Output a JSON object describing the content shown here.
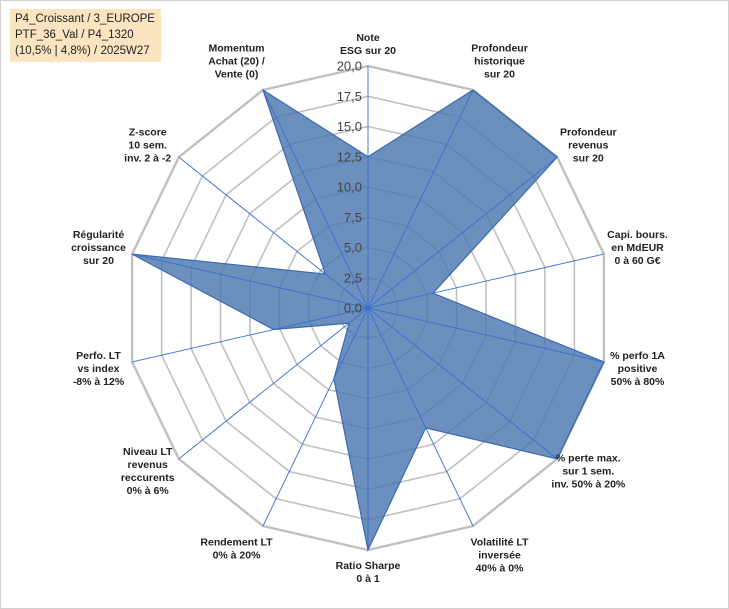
{
  "info_box": {
    "line1": "P4_Croissant / 3_EUROPE",
    "line2": "PTF_36_Val / P4_1320",
    "line3": "(10,5% | 4,8%) / 2025W27"
  },
  "colors": {
    "fill": "#4a78b0",
    "stroke": "#3a6ab0",
    "grid": "#c0c0c0",
    "spoke": "#3a6ed0"
  },
  "chart_data": {
    "type": "radar",
    "title": "",
    "rmin": 0,
    "rmax": 20,
    "tick_values": [
      0,
      2.5,
      5,
      7.5,
      10,
      12.5,
      15,
      17.5,
      20
    ],
    "tick_labels": [
      "0,0",
      "2,5",
      "5,0",
      "7,5",
      "10,0",
      "12,5",
      "15,0",
      "17,5",
      "20,0"
    ],
    "grid": true,
    "categories": [
      [
        "Note",
        "ESG sur 20"
      ],
      [
        "Profondeur",
        "historique",
        "sur 20"
      ],
      [
        "Profondeur",
        "revenus",
        "sur 20"
      ],
      [
        "Capi. bours.",
        "en MdEUR",
        "0 à 60 G€"
      ],
      [
        "% perfo 1A",
        "positive",
        "50% à 80%"
      ],
      [
        "% perte max.",
        "sur 1 sem.",
        "inv. 50% à 20%"
      ],
      [
        "Volatilité LT",
        "inversée",
        "40% à 0%"
      ],
      [
        "Ratio Sharpe",
        "0 à 1"
      ],
      [
        "Rendement LT",
        "0% à 20%"
      ],
      [
        "Niveau LT",
        "revenus",
        "reccurents",
        "0% à 6%"
      ],
      [
        "Perfo. LT",
        "vs index",
        "-8% à 12%"
      ],
      [
        "Régularité",
        "croissance",
        "sur 20"
      ],
      [
        "Z-score",
        "10 sem.",
        "inv. 2 à -2"
      ],
      [
        "Momentum",
        "Achat (20) /",
        "Vente (0)"
      ]
    ],
    "values": [
      12.5,
      20,
      20,
      5.5,
      20,
      20,
      11,
      20,
      6.5,
      2,
      8,
      20,
      4.5,
      20
    ]
  }
}
